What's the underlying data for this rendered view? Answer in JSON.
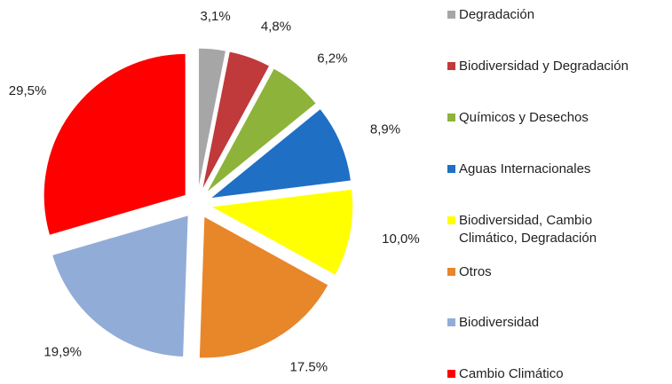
{
  "chart_data": {
    "type": "pie",
    "categories": [
      "Degradación",
      "Biodiversidad y Degradación",
      "Químicos y Desechos",
      "Aguas Internacionales",
      "Biodiversidad, Cambio Climático, Degradación",
      "Otros",
      "Biodiversidad",
      "Cambio Climático"
    ],
    "values": [
      3.1,
      4.8,
      6.2,
      8.9,
      10.0,
      17.5,
      19.9,
      29.5
    ],
    "value_labels": [
      "3,1%",
      "4,8%",
      "6,2%",
      "8,9%",
      "10,0%",
      "17.5%",
      "19,9%",
      "29,5%"
    ],
    "colors": [
      "#a6a6a6",
      "#c0393b",
      "#8db33a",
      "#1f6fc5",
      "#ffff00",
      "#e8862a",
      "#92acd8",
      "#ff0000"
    ],
    "legend": "right"
  }
}
